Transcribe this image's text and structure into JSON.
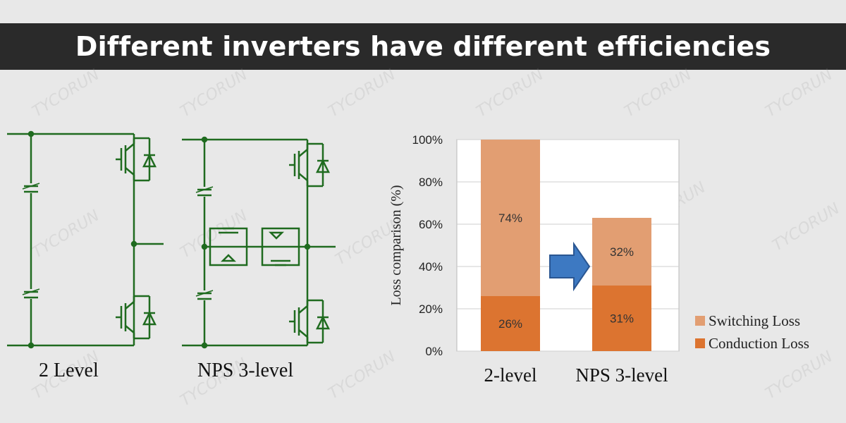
{
  "title": "Different inverters have different efficiencies",
  "watermark": "TYCORUN",
  "circuits": {
    "two_level_label": "2 Level",
    "nps_label": "NPS 3-level"
  },
  "colors": {
    "circuit_line": "#1f6b1f",
    "switching": "#e29e72",
    "conduction": "#dc7430",
    "arrow": "#3d79c2"
  },
  "chart_data": {
    "type": "bar",
    "stacked": true,
    "categories": [
      "2-level",
      "NPS 3-level"
    ],
    "series": [
      {
        "name": "Conduction Loss",
        "values": [
          26,
          31
        ],
        "labels": [
          "26%",
          "31%"
        ]
      },
      {
        "name": "Switching Loss",
        "values": [
          74,
          32
        ],
        "labels": [
          "74%",
          "32%"
        ]
      }
    ],
    "ylabel": "Loss comparison (%)",
    "ylim": [
      0,
      100
    ],
    "yticks": [
      "0%",
      "20%",
      "40%",
      "60%",
      "80%",
      "100%"
    ],
    "grid": true,
    "legend": "bottom-right"
  }
}
